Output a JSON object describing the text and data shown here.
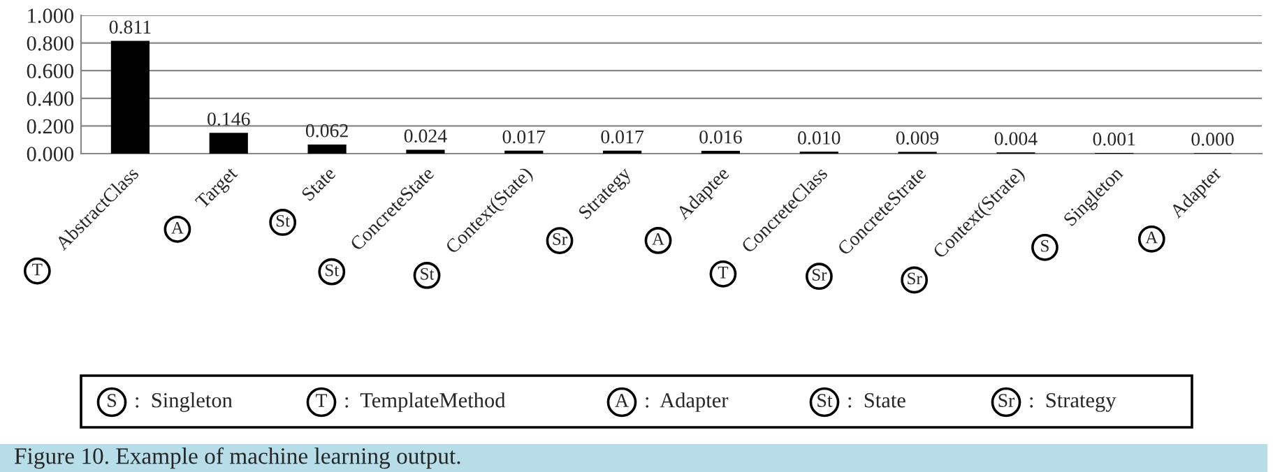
{
  "chart_data": {
    "type": "bar",
    "categories": [
      "AbstractClass",
      "Target",
      "State",
      "ConcreteState",
      "Context(State)",
      "Strategy",
      "Adaptee",
      "ConcreteClass",
      "ConcreteStrate",
      "Context(Strate)",
      "Singleton",
      "Adapter"
    ],
    "values": [
      0.811,
      0.146,
      0.062,
      0.024,
      0.017,
      0.017,
      0.016,
      0.01,
      0.009,
      0.004,
      0.001,
      0.0
    ],
    "value_labels": [
      "0.811",
      "0.146",
      "0.062",
      "0.024",
      "0.017",
      "0.017",
      "0.016",
      "0.010",
      "0.009",
      "0.004",
      "0.001",
      "0.000"
    ],
    "color": "#000000",
    "ylim": [
      0,
      1
    ],
    "yticks": [
      {
        "value": 0,
        "label": "0.000"
      },
      {
        "value": 0.2,
        "label": "0.200"
      },
      {
        "value": 0.4,
        "label": "0.400"
      },
      {
        "value": 0.6,
        "label": "0.600"
      },
      {
        "value": 0.8,
        "label": "0.800"
      },
      {
        "value": 1,
        "label": "1.000"
      }
    ],
    "grid": "y",
    "annotations": [
      "T",
      "A",
      "St",
      "St",
      "St",
      "Sr",
      "A",
      "T",
      "Sr",
      "Sr",
      "S",
      "A",
      "S : Singleton",
      "T : TemplateMethod",
      "A : Adapter",
      "St : State",
      "Sr : Strategy",
      "Figure 10. Example of machine learning output."
    ]
  }
}
